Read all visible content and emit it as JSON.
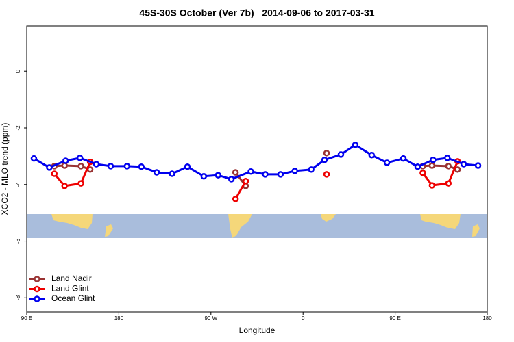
{
  "chart_data": {
    "type": "line",
    "title": "45S-30S October (Ver 7b)   2014-09-06 to 2017-03-31",
    "x_label": "Longitude",
    "y_label": "XCO2 - MLO trend (ppm)",
    "xlim": [
      90,
      540
    ],
    "xticks": [
      {
        "value": 90,
        "label": "90 E"
      },
      {
        "value": 180,
        "label": "180"
      },
      {
        "value": 270,
        "label": "90 W"
      },
      {
        "value": 360,
        "label": "0"
      },
      {
        "value": 450,
        "label": "90 E"
      },
      {
        "value": 540,
        "label": "180"
      }
    ],
    "ylim": [
      -8.5,
      1.6
    ],
    "yticks": [
      0,
      -2,
      -4,
      -6,
      -8
    ],
    "legend": "bottom-left",
    "series": [
      {
        "name": "Land Nadir",
        "color": "#993333",
        "x": [
          117,
          127,
          143,
          152,
          220,
          294,
          304,
          340,
          383,
          430,
          477,
          486,
          502,
          511
        ],
        "values": [
          -3.35,
          -3.33,
          -3.35,
          -3.47,
          null,
          -3.57,
          -4.05,
          null,
          -2.89,
          null,
          -3.35,
          -3.33,
          -3.35,
          -3.47
        ]
      },
      {
        "name": "Land Glint",
        "color": "#ee0000",
        "x": [
          117,
          127,
          143,
          152,
          220,
          294,
          304,
          340,
          383,
          430,
          477,
          486,
          502,
          511
        ],
        "values": [
          -3.62,
          -4.05,
          -3.96,
          -3.2,
          null,
          -4.51,
          -3.88,
          null,
          -3.64,
          null,
          -3.59,
          -4.03,
          -3.96,
          -3.18
        ]
      },
      {
        "name": "Ocean Glint",
        "color": "#0000ee",
        "x": [
          97,
          112,
          128,
          142,
          158,
          172,
          188,
          202,
          217,
          232,
          247,
          263,
          277,
          290,
          309,
          323,
          338,
          352,
          368,
          381,
          397,
          411,
          427,
          442,
          458,
          472,
          487,
          501,
          517,
          531
        ],
        "values": [
          -3.08,
          -3.4,
          -3.16,
          -3.06,
          -3.28,
          -3.35,
          -3.35,
          -3.37,
          -3.57,
          -3.62,
          -3.37,
          -3.71,
          -3.67,
          -3.81,
          -3.54,
          -3.64,
          -3.64,
          -3.52,
          -3.47,
          -3.13,
          -2.94,
          -2.6,
          -2.96,
          -3.23,
          -3.08,
          -3.37,
          -3.13,
          -3.06,
          -3.28,
          -3.33
        ]
      }
    ]
  }
}
